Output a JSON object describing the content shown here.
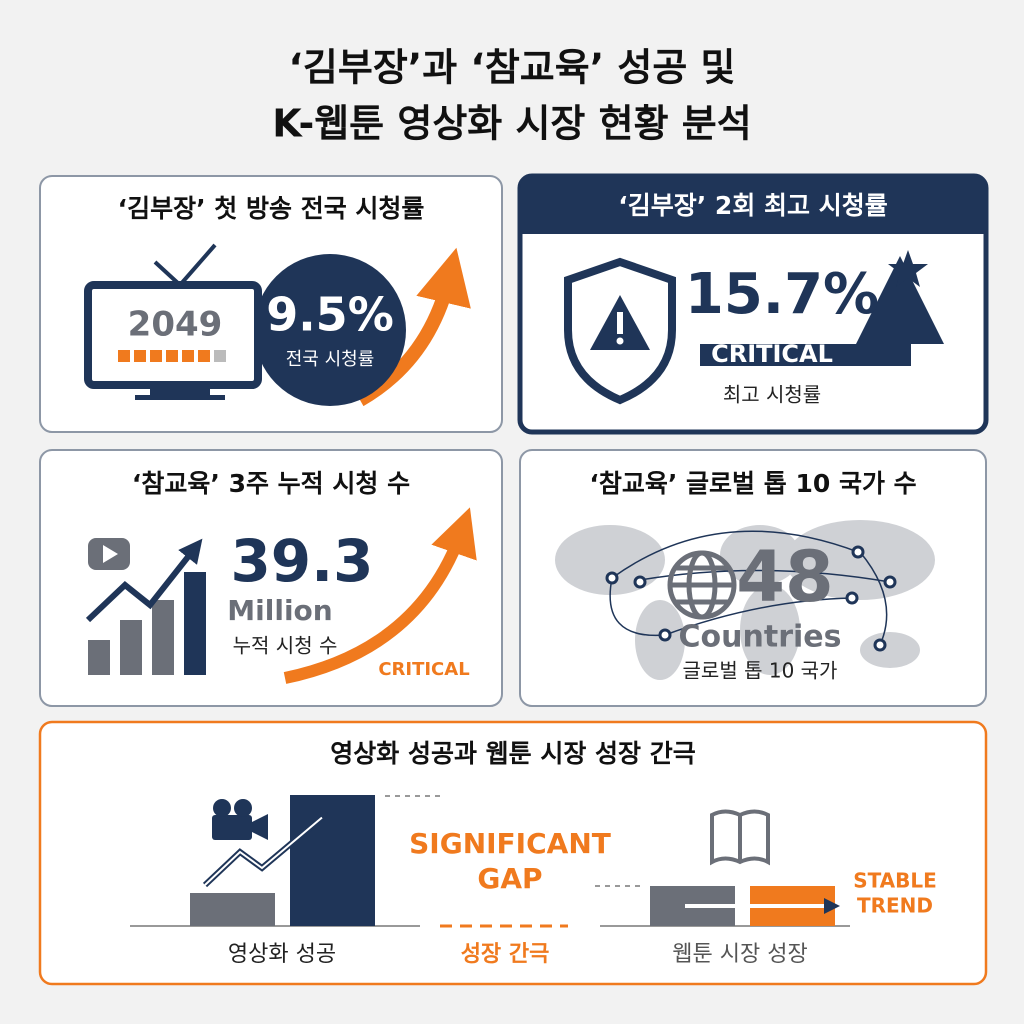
{
  "title": {
    "line1": "‘김부장’과 ‘참교육’ 성공 및",
    "line2": "K-웹툰 영상화 시장 현황 분석"
  },
  "cards": [
    {
      "title": "‘김부장’ 첫 방송 전국 시청률",
      "screen_label": "2049",
      "value": "9.5%",
      "caption": "전국 시청률"
    },
    {
      "title": "‘김부장’ 2회 최고 시청률",
      "value": "15.7%",
      "tag": "CRITICAL",
      "caption": "최고 시청률"
    },
    {
      "title": "‘참교육’ 3주 누적 시청 수",
      "value": "39.3",
      "unit": "Million",
      "caption": "누적 시청 수",
      "tag": "CRITICAL"
    },
    {
      "title": "‘참교육’ 글로벌 톱 10 국가 수",
      "value": "48",
      "unit": "Countries",
      "caption": "글로벌 톱 10 국가"
    }
  ],
  "gap": {
    "title": "영상화 성공과 웹툰 시장 성장 간극",
    "gap_label": [
      "SIGNIFICANT",
      "GAP"
    ],
    "trend_label": [
      "STABLE",
      "TREND"
    ],
    "left_label": "영상화 성공",
    "middle_label": "성장 간극",
    "right_label": "웹툰 시장 성장"
  }
}
